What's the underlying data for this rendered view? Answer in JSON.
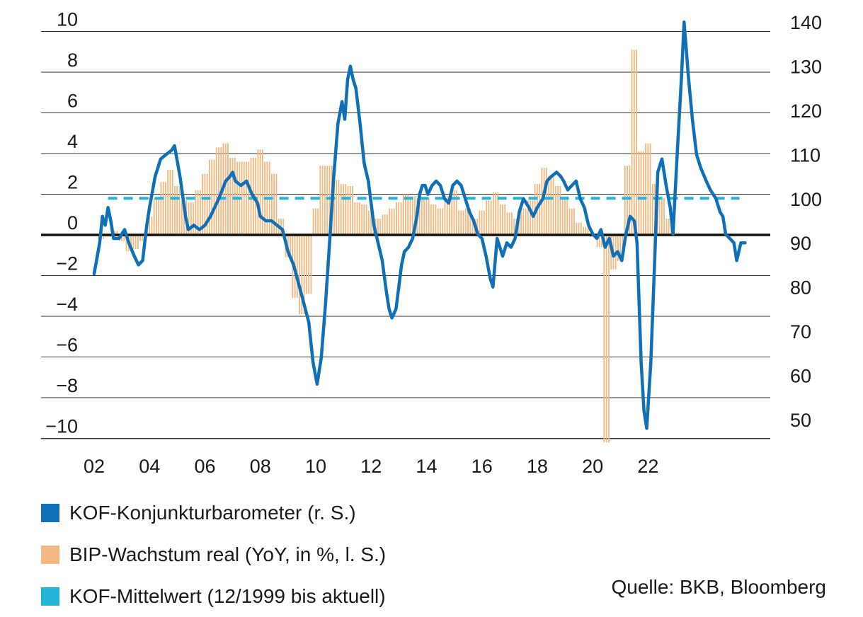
{
  "chart_data": {
    "type": "bar+line",
    "x_ticks": [
      "02",
      "04",
      "06",
      "08",
      "10",
      "12",
      "14",
      "16",
      "18",
      "20",
      "22"
    ],
    "left_axis": {
      "ticks": [
        10,
        8,
        6,
        4,
        2,
        0,
        -2,
        -4,
        -6,
        -8,
        -10
      ],
      "tick_labels": [
        "10",
        "8",
        "6",
        "4",
        "2",
        "0",
        "−2",
        "−4",
        "−6",
        "−8",
        "−10"
      ],
      "ylim": [
        -10,
        10
      ]
    },
    "right_axis": {
      "ticks": [
        140,
        130,
        120,
        110,
        100,
        90,
        80,
        70,
        60,
        50
      ],
      "tick_labels": [
        "140",
        "130",
        "120",
        "110",
        "100",
        "90",
        "80",
        "70",
        "60",
        "50"
      ],
      "ylim": [
        47.8,
        140.8
      ]
    },
    "colors": {
      "kof_line": "#0f6fb7",
      "gdp_bars": "#f2b983",
      "kof_mean": "#24b4d8",
      "zero_line": "#111111",
      "grid": "#333333"
    },
    "series": [
      {
        "name": "KOF-Konjunkturbarometer (r. S.)",
        "axis": "right",
        "type": "line",
        "points": [
          [
            2002.0,
            83
          ],
          [
            2002.2,
            90
          ],
          [
            2002.3,
            96
          ],
          [
            2002.4,
            94
          ],
          [
            2002.5,
            98
          ],
          [
            2002.6,
            95
          ],
          [
            2002.7,
            91
          ],
          [
            2002.9,
            91
          ],
          [
            2003.1,
            93
          ],
          [
            2003.25,
            90
          ],
          [
            2003.45,
            87
          ],
          [
            2003.6,
            85
          ],
          [
            2003.75,
            86
          ],
          [
            2003.9,
            94
          ],
          [
            2004.0,
            98
          ],
          [
            2004.2,
            105
          ],
          [
            2004.4,
            109
          ],
          [
            2004.6,
            110
          ],
          [
            2004.8,
            111
          ],
          [
            2004.9,
            112
          ],
          [
            2005.1,
            105
          ],
          [
            2005.3,
            96
          ],
          [
            2005.4,
            93
          ],
          [
            2005.6,
            94
          ],
          [
            2005.8,
            93
          ],
          [
            2006.0,
            94
          ],
          [
            2006.2,
            96
          ],
          [
            2006.5,
            100
          ],
          [
            2006.75,
            104
          ],
          [
            2006.9,
            105
          ],
          [
            2007.0,
            106
          ],
          [
            2007.1,
            104
          ],
          [
            2007.3,
            103
          ],
          [
            2007.5,
            104
          ],
          [
            2007.7,
            101
          ],
          [
            2007.9,
            99
          ],
          [
            2008.0,
            96
          ],
          [
            2008.2,
            95
          ],
          [
            2008.4,
            95
          ],
          [
            2008.6,
            94
          ],
          [
            2008.8,
            93
          ],
          [
            2009.0,
            88
          ],
          [
            2009.2,
            85
          ],
          [
            2009.5,
            78
          ],
          [
            2009.75,
            72
          ],
          [
            2009.9,
            63
          ],
          [
            2010.05,
            58
          ],
          [
            2010.2,
            64
          ],
          [
            2010.35,
            76
          ],
          [
            2010.5,
            90
          ],
          [
            2010.65,
            105
          ],
          [
            2010.8,
            117
          ],
          [
            2010.95,
            122
          ],
          [
            2011.05,
            118
          ],
          [
            2011.15,
            127
          ],
          [
            2011.25,
            130
          ],
          [
            2011.35,
            127
          ],
          [
            2011.45,
            125
          ],
          [
            2011.6,
            117
          ],
          [
            2011.75,
            108
          ],
          [
            2011.9,
            104
          ],
          [
            2012.0,
            99
          ],
          [
            2012.1,
            94
          ],
          [
            2012.25,
            90
          ],
          [
            2012.4,
            86
          ],
          [
            2012.55,
            79
          ],
          [
            2012.65,
            75
          ],
          [
            2012.75,
            73
          ],
          [
            2012.9,
            75
          ],
          [
            2013.0,
            80
          ],
          [
            2013.1,
            85
          ],
          [
            2013.2,
            88
          ],
          [
            2013.35,
            89
          ],
          [
            2013.5,
            91
          ],
          [
            2013.65,
            96
          ],
          [
            2013.75,
            101
          ],
          [
            2013.85,
            103
          ],
          [
            2013.95,
            103
          ],
          [
            2014.05,
            101
          ],
          [
            2014.2,
            103
          ],
          [
            2014.35,
            104
          ],
          [
            2014.5,
            103
          ],
          [
            2014.65,
            100
          ],
          [
            2014.8,
            99
          ],
          [
            2014.95,
            103
          ],
          [
            2015.1,
            104
          ],
          [
            2015.25,
            103
          ],
          [
            2015.4,
            100
          ],
          [
            2015.55,
            97
          ],
          [
            2015.7,
            95
          ],
          [
            2015.85,
            92
          ],
          [
            2016.0,
            91
          ],
          [
            2016.15,
            87
          ],
          [
            2016.3,
            82
          ],
          [
            2016.4,
            80
          ],
          [
            2016.55,
            91
          ],
          [
            2016.75,
            87
          ],
          [
            2016.9,
            90
          ],
          [
            2017.05,
            89
          ],
          [
            2017.2,
            91
          ],
          [
            2017.35,
            97
          ],
          [
            2017.5,
            100
          ],
          [
            2017.7,
            98
          ],
          [
            2017.85,
            96
          ],
          [
            2018.0,
            98
          ],
          [
            2018.2,
            100
          ],
          [
            2018.35,
            104
          ],
          [
            2018.5,
            105
          ],
          [
            2018.7,
            106
          ],
          [
            2018.85,
            105
          ],
          [
            2018.95,
            104
          ],
          [
            2019.1,
            102
          ],
          [
            2019.25,
            103
          ],
          [
            2019.4,
            104
          ],
          [
            2019.55,
            100
          ],
          [
            2019.7,
            98
          ],
          [
            2019.85,
            94
          ],
          [
            2020.0,
            92
          ],
          [
            2020.15,
            91
          ],
          [
            2020.3,
            93
          ],
          [
            2020.45,
            89
          ],
          [
            2020.6,
            91
          ],
          [
            2020.75,
            87
          ],
          [
            2020.9,
            88
          ],
          [
            2021.05,
            86
          ],
          [
            2021.2,
            92
          ],
          [
            2021.35,
            96
          ],
          [
            2021.5,
            95
          ],
          [
            2021.6,
            90
          ],
          [
            2021.75,
            63
          ],
          [
            2021.85,
            52
          ],
          [
            2021.95,
            48
          ],
          [
            2022.1,
            63
          ],
          [
            2022.25,
            88
          ],
          [
            2022.35,
            106
          ],
          [
            2022.5,
            109
          ],
          [
            2022.65,
            103
          ],
          [
            2022.8,
            98
          ],
          [
            2022.9,
            92
          ],
          [
            2023.05,
            110
          ],
          [
            2023.2,
            127
          ],
          [
            2023.3,
            140
          ],
          [
            2023.45,
            128
          ],
          [
            2023.6,
            118
          ],
          [
            2023.75,
            110
          ],
          [
            2023.9,
            107
          ],
          [
            2024.1,
            104
          ],
          [
            2024.25,
            102
          ],
          [
            2024.45,
            100
          ],
          [
            2024.6,
            97
          ],
          [
            2024.7,
            96
          ],
          [
            2024.8,
            92
          ],
          [
            2024.95,
            91
          ],
          [
            2025.1,
            90
          ],
          [
            2025.2,
            86
          ],
          [
            2025.35,
            90
          ],
          [
            2025.5,
            90
          ]
        ]
      },
      {
        "name": "BIP-Wachstum real (YoY, in %, l. S.)",
        "axis": "left",
        "type": "bar",
        "points": [
          [
            2002.25,
            -0.2
          ],
          [
            2002.5,
            -0.1
          ],
          [
            2002.75,
            0.2
          ],
          [
            2003.0,
            -0.3
          ],
          [
            2003.25,
            -0.8
          ],
          [
            2003.5,
            -0.7
          ],
          [
            2003.75,
            -0.3
          ],
          [
            2004.0,
            0.9
          ],
          [
            2004.25,
            1.8
          ],
          [
            2004.5,
            2.6
          ],
          [
            2004.75,
            3.2
          ],
          [
            2005.0,
            2.4
          ],
          [
            2005.25,
            1.7
          ],
          [
            2005.5,
            1.6
          ],
          [
            2005.75,
            2.2
          ],
          [
            2006.0,
            3.0
          ],
          [
            2006.25,
            3.7
          ],
          [
            2006.5,
            4.3
          ],
          [
            2006.75,
            4.5
          ],
          [
            2007.0,
            3.8
          ],
          [
            2007.25,
            3.6
          ],
          [
            2007.5,
            3.6
          ],
          [
            2007.75,
            3.8
          ],
          [
            2008.0,
            4.2
          ],
          [
            2008.25,
            3.6
          ],
          [
            2008.5,
            3.0
          ],
          [
            2008.75,
            0.8
          ],
          [
            2009.0,
            -1.1
          ],
          [
            2009.25,
            -3.1
          ],
          [
            2009.5,
            -3.9
          ],
          [
            2009.75,
            -2.9
          ],
          [
            2010.0,
            1.3
          ],
          [
            2010.25,
            3.4
          ],
          [
            2010.5,
            3.4
          ],
          [
            2010.75,
            2.7
          ],
          [
            2011.0,
            2.5
          ],
          [
            2011.25,
            2.4
          ],
          [
            2011.5,
            1.6
          ],
          [
            2011.75,
            1.5
          ],
          [
            2012.0,
            1.2
          ],
          [
            2012.25,
            0.8
          ],
          [
            2012.5,
            1.0
          ],
          [
            2012.75,
            1.3
          ],
          [
            2013.0,
            1.6
          ],
          [
            2013.25,
            2.0
          ],
          [
            2013.5,
            1.9
          ],
          [
            2013.75,
            1.8
          ],
          [
            2014.0,
            1.8
          ],
          [
            2014.25,
            1.5
          ],
          [
            2014.5,
            1.3
          ],
          [
            2014.75,
            1.9
          ],
          [
            2015.0,
            2.2
          ],
          [
            2015.25,
            1.2
          ],
          [
            2015.5,
            1.3
          ],
          [
            2015.75,
            0.8
          ],
          [
            2016.0,
            1.2
          ],
          [
            2016.25,
            1.7
          ],
          [
            2016.5,
            2.1
          ],
          [
            2016.75,
            1.5
          ],
          [
            2017.0,
            1.1
          ],
          [
            2017.25,
            0.8
          ],
          [
            2017.5,
            1.3
          ],
          [
            2017.75,
            1.7
          ],
          [
            2018.0,
            2.5
          ],
          [
            2018.25,
            3.3
          ],
          [
            2018.5,
            2.9
          ],
          [
            2018.75,
            2.4
          ],
          [
            2019.0,
            1.9
          ],
          [
            2019.25,
            1.3
          ],
          [
            2019.5,
            0.6
          ],
          [
            2019.75,
            0.4
          ],
          [
            2020.0,
            -0.1
          ],
          [
            2020.25,
            -0.6
          ],
          [
            2020.5,
            -10.2
          ],
          [
            2020.75,
            -1.7
          ],
          [
            2021.0,
            -1.3
          ],
          [
            2021.25,
            3.4
          ],
          [
            2021.5,
            9.1
          ],
          [
            2021.75,
            4.1
          ],
          [
            2022.0,
            4.5
          ],
          [
            2022.25,
            2.5
          ],
          [
            2022.5,
            1.8
          ],
          [
            2022.75,
            0.8
          ]
        ]
      },
      {
        "name": "KOF-Mittelwert (12/1999 bis aktuell)",
        "axis": "right",
        "type": "line",
        "dashed": true,
        "points": [
          [
            2002.5,
            100.1
          ],
          [
            2025.3,
            100.1
          ]
        ]
      }
    ]
  },
  "legend": [
    {
      "label": "KOF-Konjunkturbarometer (r. S.)",
      "color": "#0f6fb7"
    },
    {
      "label": "BIP-Wachstum real (YoY, in %, l. S.)",
      "color": "#f2b983"
    },
    {
      "label": "KOF-Mittelwert (12/1999 bis aktuell)",
      "color": "#24b4d8"
    }
  ],
  "source": "Quelle: BKB, Bloomberg"
}
